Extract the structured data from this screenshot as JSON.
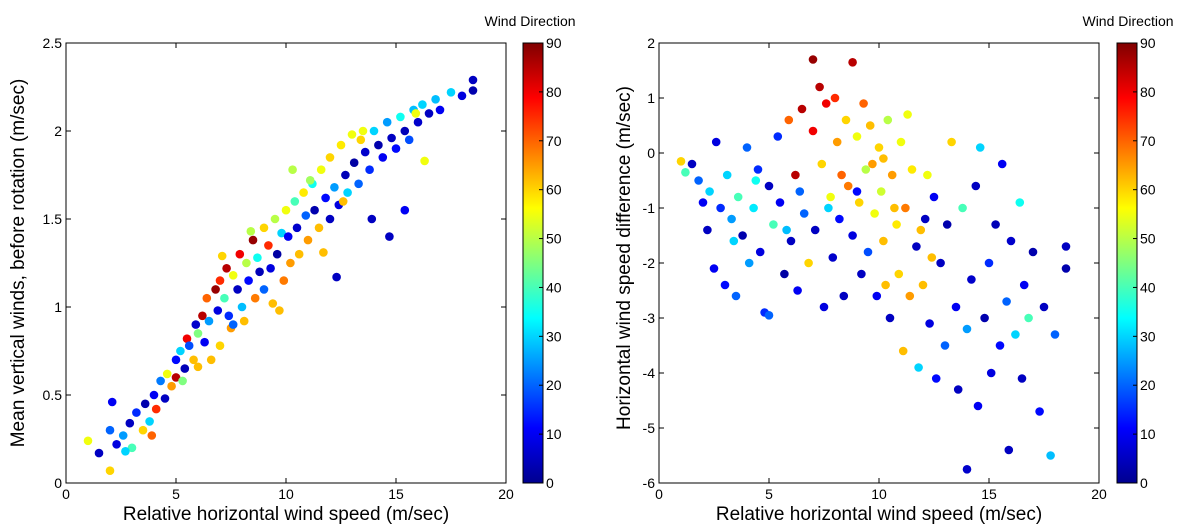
{
  "colormap": {
    "name": "jet",
    "stops": [
      "#00008f",
      "#0000ff",
      "#00ffff",
      "#ffff00",
      "#ff0000",
      "#800000"
    ]
  },
  "chart_data": [
    {
      "type": "scatter",
      "title": "",
      "xlabel": "Relative horizontal wind speed (m/sec)",
      "ylabel": "Mean vertical winds, before rotation (m/sec)",
      "xlim": [
        0,
        20
      ],
      "ylim": [
        0,
        2.5
      ],
      "xticks": [
        "0",
        "5",
        "10",
        "15",
        "20"
      ],
      "yticks": [
        "0",
        "0.5",
        "1",
        "1.5",
        "2",
        "2.5"
      ],
      "grid": false,
      "colorbar": {
        "title": "Wind Direction",
        "range": [
          0,
          90
        ],
        "ticks": [
          "0",
          "10",
          "20",
          "30",
          "40",
          "50",
          "60",
          "70",
          "80",
          "90"
        ]
      },
      "points": [
        [
          1.0,
          0.24,
          55
        ],
        [
          1.5,
          0.17,
          5
        ],
        [
          2.0,
          0.07,
          60
        ],
        [
          2.1,
          0.46,
          10
        ],
        [
          2.0,
          0.3,
          20
        ],
        [
          2.3,
          0.22,
          8
        ],
        [
          2.6,
          0.27,
          25
        ],
        [
          2.9,
          0.34,
          5
        ],
        [
          3.0,
          0.2,
          40
        ],
        [
          3.2,
          0.4,
          15
        ],
        [
          3.5,
          0.3,
          60
        ],
        [
          3.6,
          0.45,
          3
        ],
        [
          3.8,
          0.35,
          30
        ],
        [
          4.0,
          0.5,
          10
        ],
        [
          4.1,
          0.42,
          75
        ],
        [
          4.3,
          0.58,
          22
        ],
        [
          4.5,
          0.48,
          5
        ],
        [
          4.6,
          0.62,
          55
        ],
        [
          4.8,
          0.55,
          65
        ],
        [
          5.0,
          0.7,
          12
        ],
        [
          5.0,
          0.6,
          85
        ],
        [
          5.2,
          0.75,
          30
        ],
        [
          5.4,
          0.65,
          4
        ],
        [
          5.5,
          0.82,
          80
        ],
        [
          5.6,
          0.78,
          18
        ],
        [
          5.8,
          0.7,
          62
        ],
        [
          5.9,
          0.9,
          6
        ],
        [
          6.0,
          0.85,
          45
        ],
        [
          6.2,
          0.95,
          85
        ],
        [
          6.3,
          0.8,
          10
        ],
        [
          6.4,
          1.05,
          70
        ],
        [
          6.5,
          0.92,
          25
        ],
        [
          6.6,
          0.7,
          62
        ],
        [
          6.8,
          1.1,
          88
        ],
        [
          6.9,
          0.98,
          8
        ],
        [
          7.0,
          1.15,
          75
        ],
        [
          7.0,
          0.78,
          60
        ],
        [
          7.2,
          1.05,
          40
        ],
        [
          7.3,
          1.22,
          85
        ],
        [
          7.4,
          0.95,
          15
        ],
        [
          7.5,
          0.88,
          65
        ],
        [
          7.6,
          1.18,
          55
        ],
        [
          7.8,
          1.1,
          5
        ],
        [
          7.9,
          1.3,
          80
        ],
        [
          8.0,
          1.0,
          28
        ],
        [
          8.1,
          0.92,
          62
        ],
        [
          8.2,
          1.25,
          50
        ],
        [
          8.3,
          1.15,
          12
        ],
        [
          8.5,
          1.38,
          88
        ],
        [
          8.6,
          1.05,
          68
        ],
        [
          8.7,
          1.28,
          35
        ],
        [
          8.8,
          1.2,
          4
        ],
        [
          9.0,
          1.45,
          60
        ],
        [
          9.0,
          1.1,
          20
        ],
        [
          9.2,
          1.35,
          75
        ],
        [
          9.3,
          1.22,
          8
        ],
        [
          9.4,
          1.02,
          62
        ],
        [
          9.5,
          1.5,
          50
        ],
        [
          9.6,
          1.3,
          2
        ],
        [
          9.8,
          1.42,
          30
        ],
        [
          9.9,
          1.15,
          68
        ],
        [
          10.0,
          1.55,
          55
        ],
        [
          10.1,
          1.4,
          10
        ],
        [
          10.2,
          1.25,
          65
        ],
        [
          10.4,
          1.6,
          40
        ],
        [
          10.5,
          1.45,
          6
        ],
        [
          10.6,
          1.3,
          62
        ],
        [
          10.8,
          1.65,
          58
        ],
        [
          10.9,
          1.52,
          20
        ],
        [
          11.0,
          1.38,
          65
        ],
        [
          11.2,
          1.7,
          35
        ],
        [
          11.3,
          1.55,
          3
        ],
        [
          11.5,
          1.45,
          62
        ],
        [
          11.6,
          1.78,
          55
        ],
        [
          11.8,
          1.62,
          12
        ],
        [
          12.0,
          1.5,
          5
        ],
        [
          12.0,
          1.85,
          60
        ],
        [
          12.2,
          1.68,
          25
        ],
        [
          12.4,
          1.58,
          8
        ],
        [
          12.5,
          1.92,
          58
        ],
        [
          12.7,
          1.75,
          4
        ],
        [
          12.8,
          1.65,
          30
        ],
        [
          13.0,
          1.98,
          55
        ],
        [
          13.1,
          1.82,
          2
        ],
        [
          13.3,
          1.7,
          20
        ],
        [
          13.4,
          1.95,
          60
        ],
        [
          13.6,
          1.88,
          6
        ],
        [
          13.8,
          1.78,
          15
        ],
        [
          14.0,
          2.0,
          30
        ],
        [
          14.2,
          1.92,
          3
        ],
        [
          14.4,
          1.85,
          10
        ],
        [
          14.6,
          2.05,
          25
        ],
        [
          14.8,
          1.96,
          5
        ],
        [
          15.0,
          1.9,
          12
        ],
        [
          15.2,
          2.08,
          35
        ],
        [
          15.4,
          2.0,
          4
        ],
        [
          15.6,
          1.95,
          18
        ],
        [
          15.8,
          2.12,
          28
        ],
        [
          16.0,
          2.05,
          6
        ],
        [
          16.2,
          2.15,
          30
        ],
        [
          16.5,
          2.1,
          5
        ],
        [
          16.8,
          2.18,
          28
        ],
        [
          17.0,
          2.12,
          10
        ],
        [
          17.5,
          2.22,
          30
        ],
        [
          18.0,
          2.2,
          8
        ],
        [
          18.5,
          2.29,
          5
        ],
        [
          18.5,
          2.23,
          3
        ],
        [
          12.3,
          1.17,
          5
        ],
        [
          13.9,
          1.5,
          5
        ],
        [
          7.6,
          0.9,
          20
        ],
        [
          6.0,
          0.66,
          62
        ],
        [
          5.3,
          0.58,
          45
        ],
        [
          3.9,
          0.27,
          70
        ],
        [
          2.7,
          0.18,
          30
        ],
        [
          9.7,
          0.98,
          62
        ],
        [
          11.1,
          1.72,
          48
        ],
        [
          10.3,
          1.78,
          50
        ],
        [
          14.7,
          1.4,
          5
        ],
        [
          15.4,
          1.55,
          10
        ],
        [
          16.3,
          1.83,
          55
        ],
        [
          12.6,
          1.6,
          62
        ],
        [
          11.7,
          1.31,
          62
        ],
        [
          8.4,
          1.43,
          50
        ],
        [
          7.1,
          1.29,
          60
        ],
        [
          13.5,
          2.0,
          55
        ],
        [
          15.9,
          2.1,
          55
        ]
      ]
    },
    {
      "type": "scatter",
      "title": "",
      "xlabel": "Relative horizontal wind speed (m/sec)",
      "ylabel": "Horizontal wind speed difference (m/sec)",
      "xlim": [
        0,
        20
      ],
      "ylim": [
        -6,
        2
      ],
      "xticks": [
        "0",
        "5",
        "10",
        "15",
        "20"
      ],
      "yticks": [
        "-6",
        "-5",
        "-4",
        "-3",
        "-2",
        "-1",
        "0",
        "1",
        "2"
      ],
      "grid": false,
      "colorbar": {
        "title": "Wind Direction",
        "range": [
          0,
          90
        ],
        "ticks": [
          "0",
          "10",
          "20",
          "30",
          "40",
          "50",
          "60",
          "70",
          "80",
          "90"
        ]
      },
      "points": [
        [
          1.0,
          -0.15,
          60
        ],
        [
          1.2,
          -0.35,
          40
        ],
        [
          1.5,
          -0.2,
          5
        ],
        [
          1.8,
          -0.5,
          20
        ],
        [
          2.0,
          -0.9,
          10
        ],
        [
          2.2,
          -1.4,
          5
        ],
        [
          2.3,
          -0.7,
          30
        ],
        [
          2.5,
          -2.1,
          10
        ],
        [
          2.6,
          0.2,
          8
        ],
        [
          2.8,
          -1.0,
          15
        ],
        [
          3.0,
          -2.4,
          12
        ],
        [
          3.1,
          -0.4,
          30
        ],
        [
          3.3,
          -1.2,
          25
        ],
        [
          3.5,
          -2.6,
          20
        ],
        [
          3.6,
          -0.8,
          40
        ],
        [
          3.8,
          -1.5,
          3
        ],
        [
          4.0,
          0.1,
          20
        ],
        [
          4.1,
          -2.0,
          25
        ],
        [
          4.3,
          -1.0,
          32
        ],
        [
          4.5,
          -0.3,
          15
        ],
        [
          4.6,
          -1.8,
          8
        ],
        [
          4.8,
          -2.9,
          15
        ],
        [
          5.0,
          -0.6,
          5
        ],
        [
          5.0,
          -2.95,
          20
        ],
        [
          5.2,
          -1.3,
          40
        ],
        [
          5.4,
          0.3,
          15
        ],
        [
          5.5,
          -0.9,
          10
        ],
        [
          5.7,
          -2.2,
          2
        ],
        [
          5.9,
          0.6,
          70
        ],
        [
          6.0,
          -1.6,
          5
        ],
        [
          6.2,
          -0.4,
          85
        ],
        [
          6.3,
          -2.5,
          10
        ],
        [
          6.5,
          0.8,
          85
        ],
        [
          6.6,
          -1.1,
          20
        ],
        [
          6.8,
          -2.0,
          60
        ],
        [
          7.0,
          1.7,
          88
        ],
        [
          7.0,
          0.4,
          80
        ],
        [
          7.1,
          -1.4,
          5
        ],
        [
          7.3,
          1.2,
          85
        ],
        [
          7.4,
          -0.2,
          60
        ],
        [
          7.5,
          -2.8,
          8
        ],
        [
          7.6,
          0.9,
          80
        ],
        [
          7.8,
          -0.8,
          55
        ],
        [
          7.9,
          -1.9,
          6
        ],
        [
          8.0,
          1.0,
          75
        ],
        [
          8.1,
          0.2,
          65
        ],
        [
          8.2,
          -1.2,
          12
        ],
        [
          8.4,
          -2.6,
          5
        ],
        [
          8.5,
          0.6,
          60
        ],
        [
          8.6,
          -0.6,
          68
        ],
        [
          8.8,
          1.65,
          85
        ],
        [
          8.8,
          -1.5,
          8
        ],
        [
          9.0,
          0.3,
          55
        ],
        [
          9.1,
          -0.9,
          60
        ],
        [
          9.2,
          -2.2,
          5
        ],
        [
          9.3,
          0.9,
          70
        ],
        [
          9.4,
          -0.3,
          50
        ],
        [
          9.5,
          -1.8,
          18
        ],
        [
          9.6,
          0.5,
          62
        ],
        [
          9.8,
          -1.1,
          55
        ],
        [
          9.9,
          -2.6,
          10
        ],
        [
          10.0,
          0.1,
          60
        ],
        [
          10.1,
          -0.7,
          52
        ],
        [
          10.2,
          -1.6,
          62
        ],
        [
          10.4,
          0.6,
          50
        ],
        [
          10.5,
          -3.0,
          5
        ],
        [
          10.6,
          -0.4,
          65
        ],
        [
          10.8,
          -1.3,
          58
        ],
        [
          10.9,
          -2.2,
          60
        ],
        [
          11.0,
          0.2,
          55
        ],
        [
          11.1,
          -3.6,
          62
        ],
        [
          11.2,
          -1.0,
          68
        ],
        [
          11.4,
          -2.6,
          65
        ],
        [
          11.5,
          -0.3,
          58
        ],
        [
          11.7,
          -1.7,
          5
        ],
        [
          11.8,
          -3.9,
          30
        ],
        [
          12.0,
          -2.4,
          62
        ],
        [
          12.1,
          -1.2,
          5
        ],
        [
          12.3,
          -3.1,
          8
        ],
        [
          12.5,
          -0.8,
          10
        ],
        [
          12.6,
          -4.1,
          12
        ],
        [
          12.8,
          -2.0,
          5
        ],
        [
          13.0,
          -3.5,
          20
        ],
        [
          13.1,
          -1.3,
          3
        ],
        [
          13.3,
          0.2,
          60
        ],
        [
          13.5,
          -2.8,
          10
        ],
        [
          13.6,
          -4.3,
          5
        ],
        [
          13.8,
          -1.0,
          40
        ],
        [
          14.0,
          -3.2,
          25
        ],
        [
          14.0,
          -5.75,
          6
        ],
        [
          14.2,
          -2.3,
          6
        ],
        [
          14.4,
          -0.6,
          5
        ],
        [
          14.5,
          -4.6,
          10
        ],
        [
          14.6,
          0.1,
          30
        ],
        [
          14.8,
          -3.0,
          3
        ],
        [
          15.0,
          -2.0,
          15
        ],
        [
          15.1,
          -4.0,
          8
        ],
        [
          15.3,
          -1.3,
          4
        ],
        [
          15.5,
          -3.5,
          12
        ],
        [
          15.6,
          -0.2,
          10
        ],
        [
          15.8,
          -2.7,
          20
        ],
        [
          15.9,
          -5.4,
          5
        ],
        [
          16.0,
          -1.6,
          6
        ],
        [
          16.2,
          -3.3,
          30
        ],
        [
          16.4,
          -0.9,
          35
        ],
        [
          16.5,
          -4.1,
          5
        ],
        [
          16.6,
          -2.4,
          10
        ],
        [
          16.8,
          -3.0,
          40
        ],
        [
          17.0,
          -1.8,
          3
        ],
        [
          17.3,
          -4.7,
          12
        ],
        [
          17.5,
          -2.8,
          5
        ],
        [
          17.8,
          -5.5,
          28
        ],
        [
          18.0,
          -3.3,
          20
        ],
        [
          18.5,
          -1.7,
          5
        ],
        [
          18.5,
          -2.1,
          3
        ],
        [
          10.2,
          -0.1,
          62
        ],
        [
          11.3,
          0.7,
          55
        ],
        [
          9.7,
          -0.2,
          65
        ],
        [
          8.3,
          -0.4,
          70
        ],
        [
          10.7,
          -1.0,
          62
        ],
        [
          11.9,
          -1.4,
          62
        ],
        [
          12.4,
          -1.9,
          62
        ],
        [
          7.7,
          -1.0,
          30
        ],
        [
          6.4,
          -0.7,
          20
        ],
        [
          5.8,
          -1.4,
          28
        ],
        [
          4.4,
          -0.5,
          35
        ],
        [
          3.4,
          -1.6,
          30
        ],
        [
          12.2,
          -0.4,
          55
        ],
        [
          9.0,
          -0.7,
          12
        ],
        [
          10.3,
          -2.4,
          62
        ]
      ]
    }
  ]
}
